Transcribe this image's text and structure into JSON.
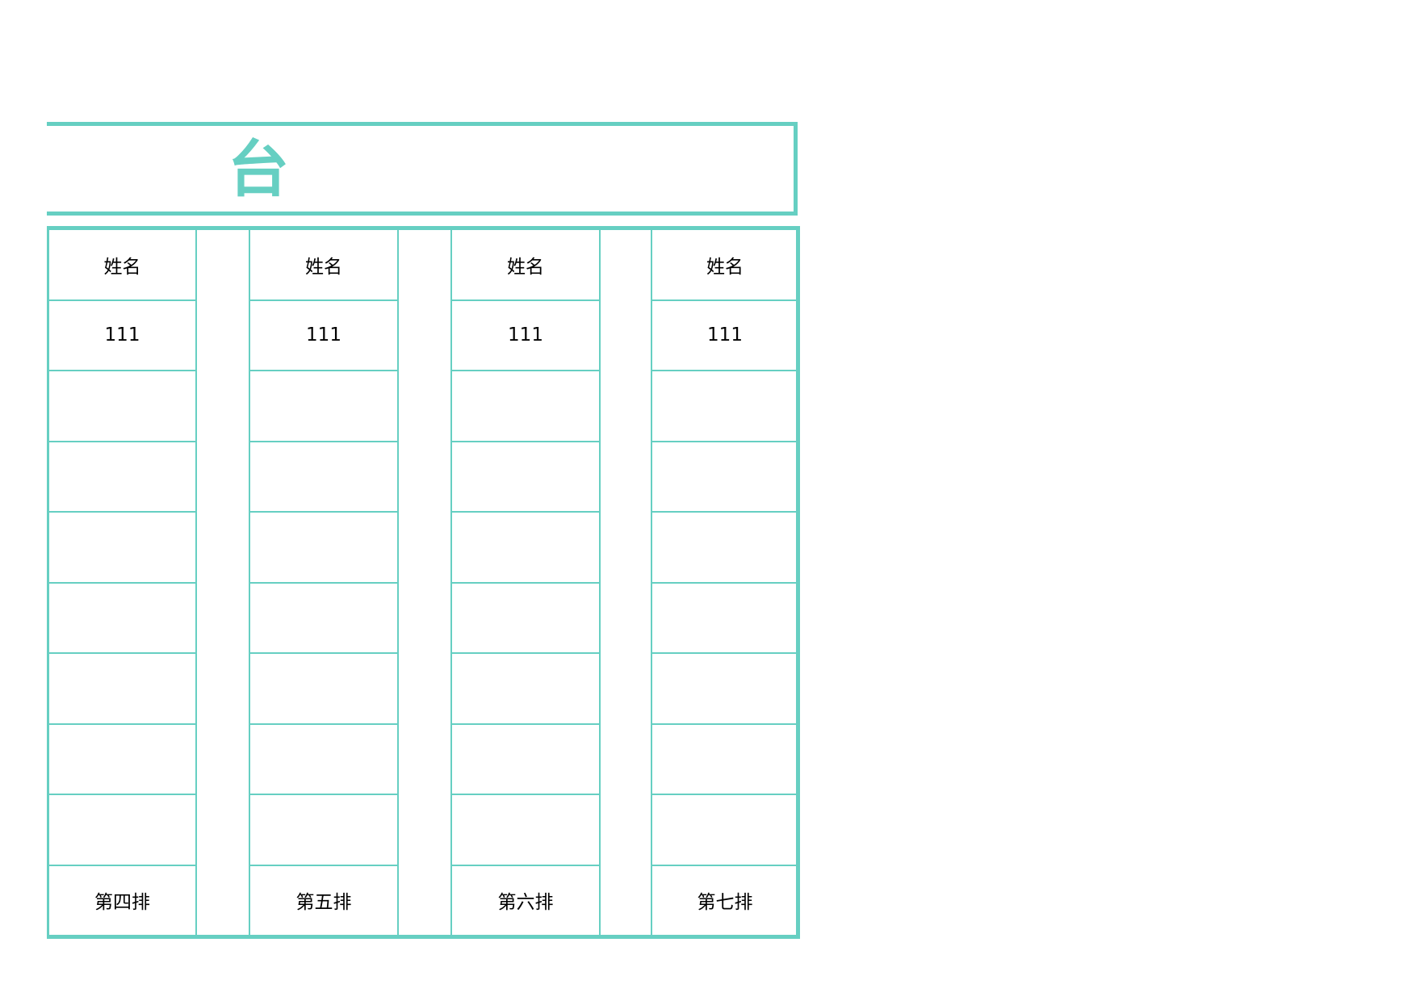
{
  "title": "台",
  "accent_color": "#66cfc2",
  "columns": [
    {
      "header": "姓名",
      "rows": [
        "111",
        "",
        "",
        "",
        "",
        "",
        "",
        ""
      ],
      "footer": "第四排"
    },
    {
      "header": "姓名",
      "rows": [
        "111",
        "",
        "",
        "",
        "",
        "",
        "",
        ""
      ],
      "footer": "第五排"
    },
    {
      "header": "姓名",
      "rows": [
        "111",
        "",
        "",
        "",
        "",
        "",
        "",
        ""
      ],
      "footer": "第六排"
    },
    {
      "header": "姓名",
      "rows": [
        "111",
        "",
        "",
        "",
        "",
        "",
        "",
        ""
      ],
      "footer": "第七排"
    }
  ]
}
